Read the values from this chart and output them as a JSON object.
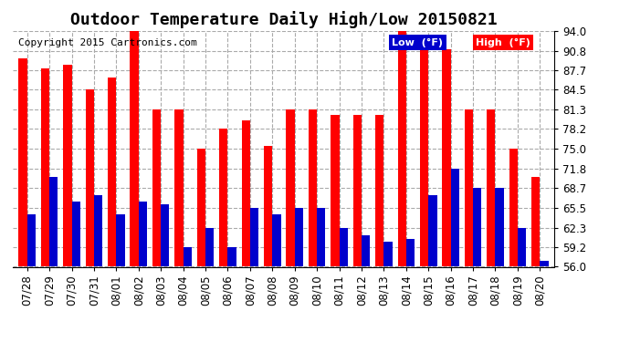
{
  "title": "Outdoor Temperature Daily High/Low 20150821",
  "copyright": "Copyright 2015 Cartronics.com",
  "legend_low": "Low  (°F)",
  "legend_high": "High  (°F)",
  "categories": [
    "07/28",
    "07/29",
    "07/30",
    "07/31",
    "08/01",
    "08/02",
    "08/03",
    "08/04",
    "08/05",
    "08/06",
    "08/07",
    "08/08",
    "08/09",
    "08/10",
    "08/11",
    "08/12",
    "08/13",
    "08/14",
    "08/15",
    "08/16",
    "08/17",
    "08/18",
    "08/19",
    "08/20"
  ],
  "high": [
    89.5,
    88.0,
    88.5,
    84.5,
    86.5,
    94.0,
    81.3,
    81.3,
    75.0,
    78.2,
    79.5,
    75.5,
    81.3,
    81.3,
    80.5,
    80.5,
    80.5,
    94.0,
    91.0,
    91.0,
    81.3,
    81.3,
    75.0,
    70.5
  ],
  "low": [
    64.5,
    70.5,
    66.5,
    67.5,
    64.5,
    66.5,
    66.0,
    59.2,
    62.3,
    59.2,
    65.5,
    64.5,
    65.5,
    65.5,
    62.3,
    61.0,
    60.0,
    60.5,
    67.5,
    71.8,
    68.7,
    68.7,
    62.3,
    57.0
  ],
  "ylim_min": 56.0,
  "ylim_max": 94.0,
  "yticks": [
    56.0,
    59.2,
    62.3,
    65.5,
    68.7,
    71.8,
    75.0,
    78.2,
    81.3,
    84.5,
    87.7,
    90.8,
    94.0
  ],
  "bar_width": 0.38,
  "high_color": "#ff0000",
  "low_color": "#0000cc",
  "bg_color": "#ffffff",
  "grid_color": "#aaaaaa",
  "title_fontsize": 13,
  "tick_fontsize": 8.5,
  "copyright_fontsize": 8,
  "legend_low_bg": "#0000cc",
  "legend_high_bg": "#ff0000",
  "legend_text_color": "#ffffff"
}
